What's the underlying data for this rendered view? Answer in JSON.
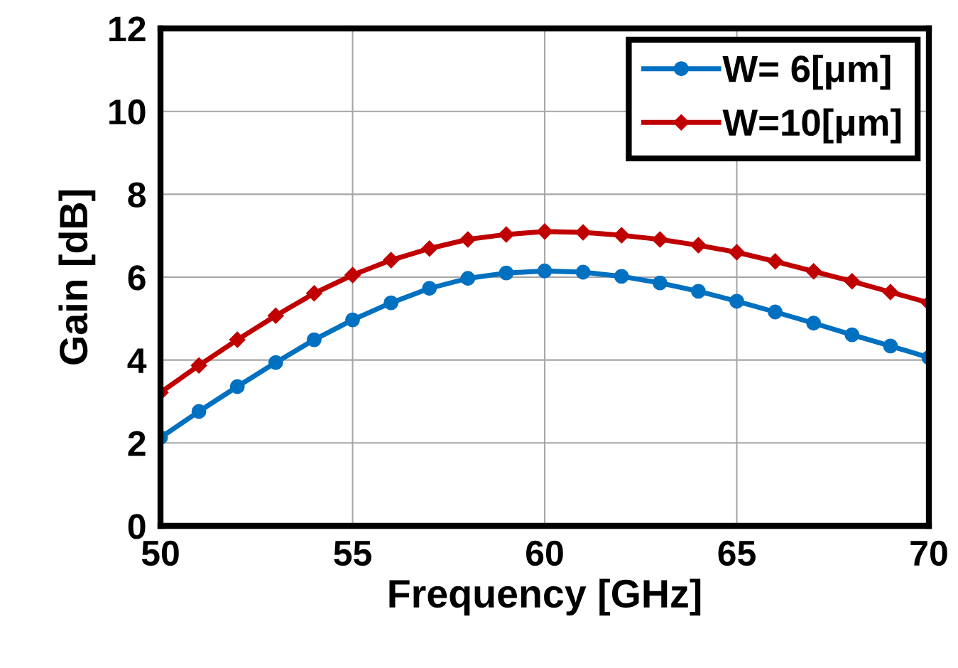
{
  "chart_data": {
    "type": "line",
    "xlabel": "Frequency [GHz]",
    "ylabel": "Gain [dB]",
    "x": [
      50,
      51,
      52,
      53,
      54,
      55,
      56,
      57,
      58,
      59,
      60,
      61,
      62,
      63,
      64,
      65,
      66,
      67,
      68,
      69,
      70
    ],
    "series": [
      {
        "name": "W= 6[μm]",
        "color": "#0070c0",
        "marker": "circle",
        "values": [
          2.13,
          2.76,
          3.36,
          3.94,
          4.49,
          4.97,
          5.38,
          5.73,
          5.97,
          6.1,
          6.15,
          6.12,
          6.02,
          5.86,
          5.66,
          5.42,
          5.16,
          4.89,
          4.61,
          4.34,
          4.06
        ]
      },
      {
        "name": "W=10[μm]",
        "color": "#c00000",
        "marker": "diamond",
        "values": [
          3.22,
          3.87,
          4.49,
          5.07,
          5.61,
          6.05,
          6.41,
          6.69,
          6.91,
          7.03,
          7.1,
          7.08,
          7.01,
          6.91,
          6.77,
          6.6,
          6.38,
          6.14,
          5.9,
          5.64,
          5.38
        ]
      }
    ],
    "xlim": [
      50,
      70
    ],
    "xticks": [
      50,
      55,
      60,
      65,
      70
    ],
    "ylim": [
      0,
      12
    ],
    "yticks": [
      0,
      2,
      4,
      6,
      8,
      10,
      12
    ],
    "grid": true,
    "legend": "top right"
  }
}
